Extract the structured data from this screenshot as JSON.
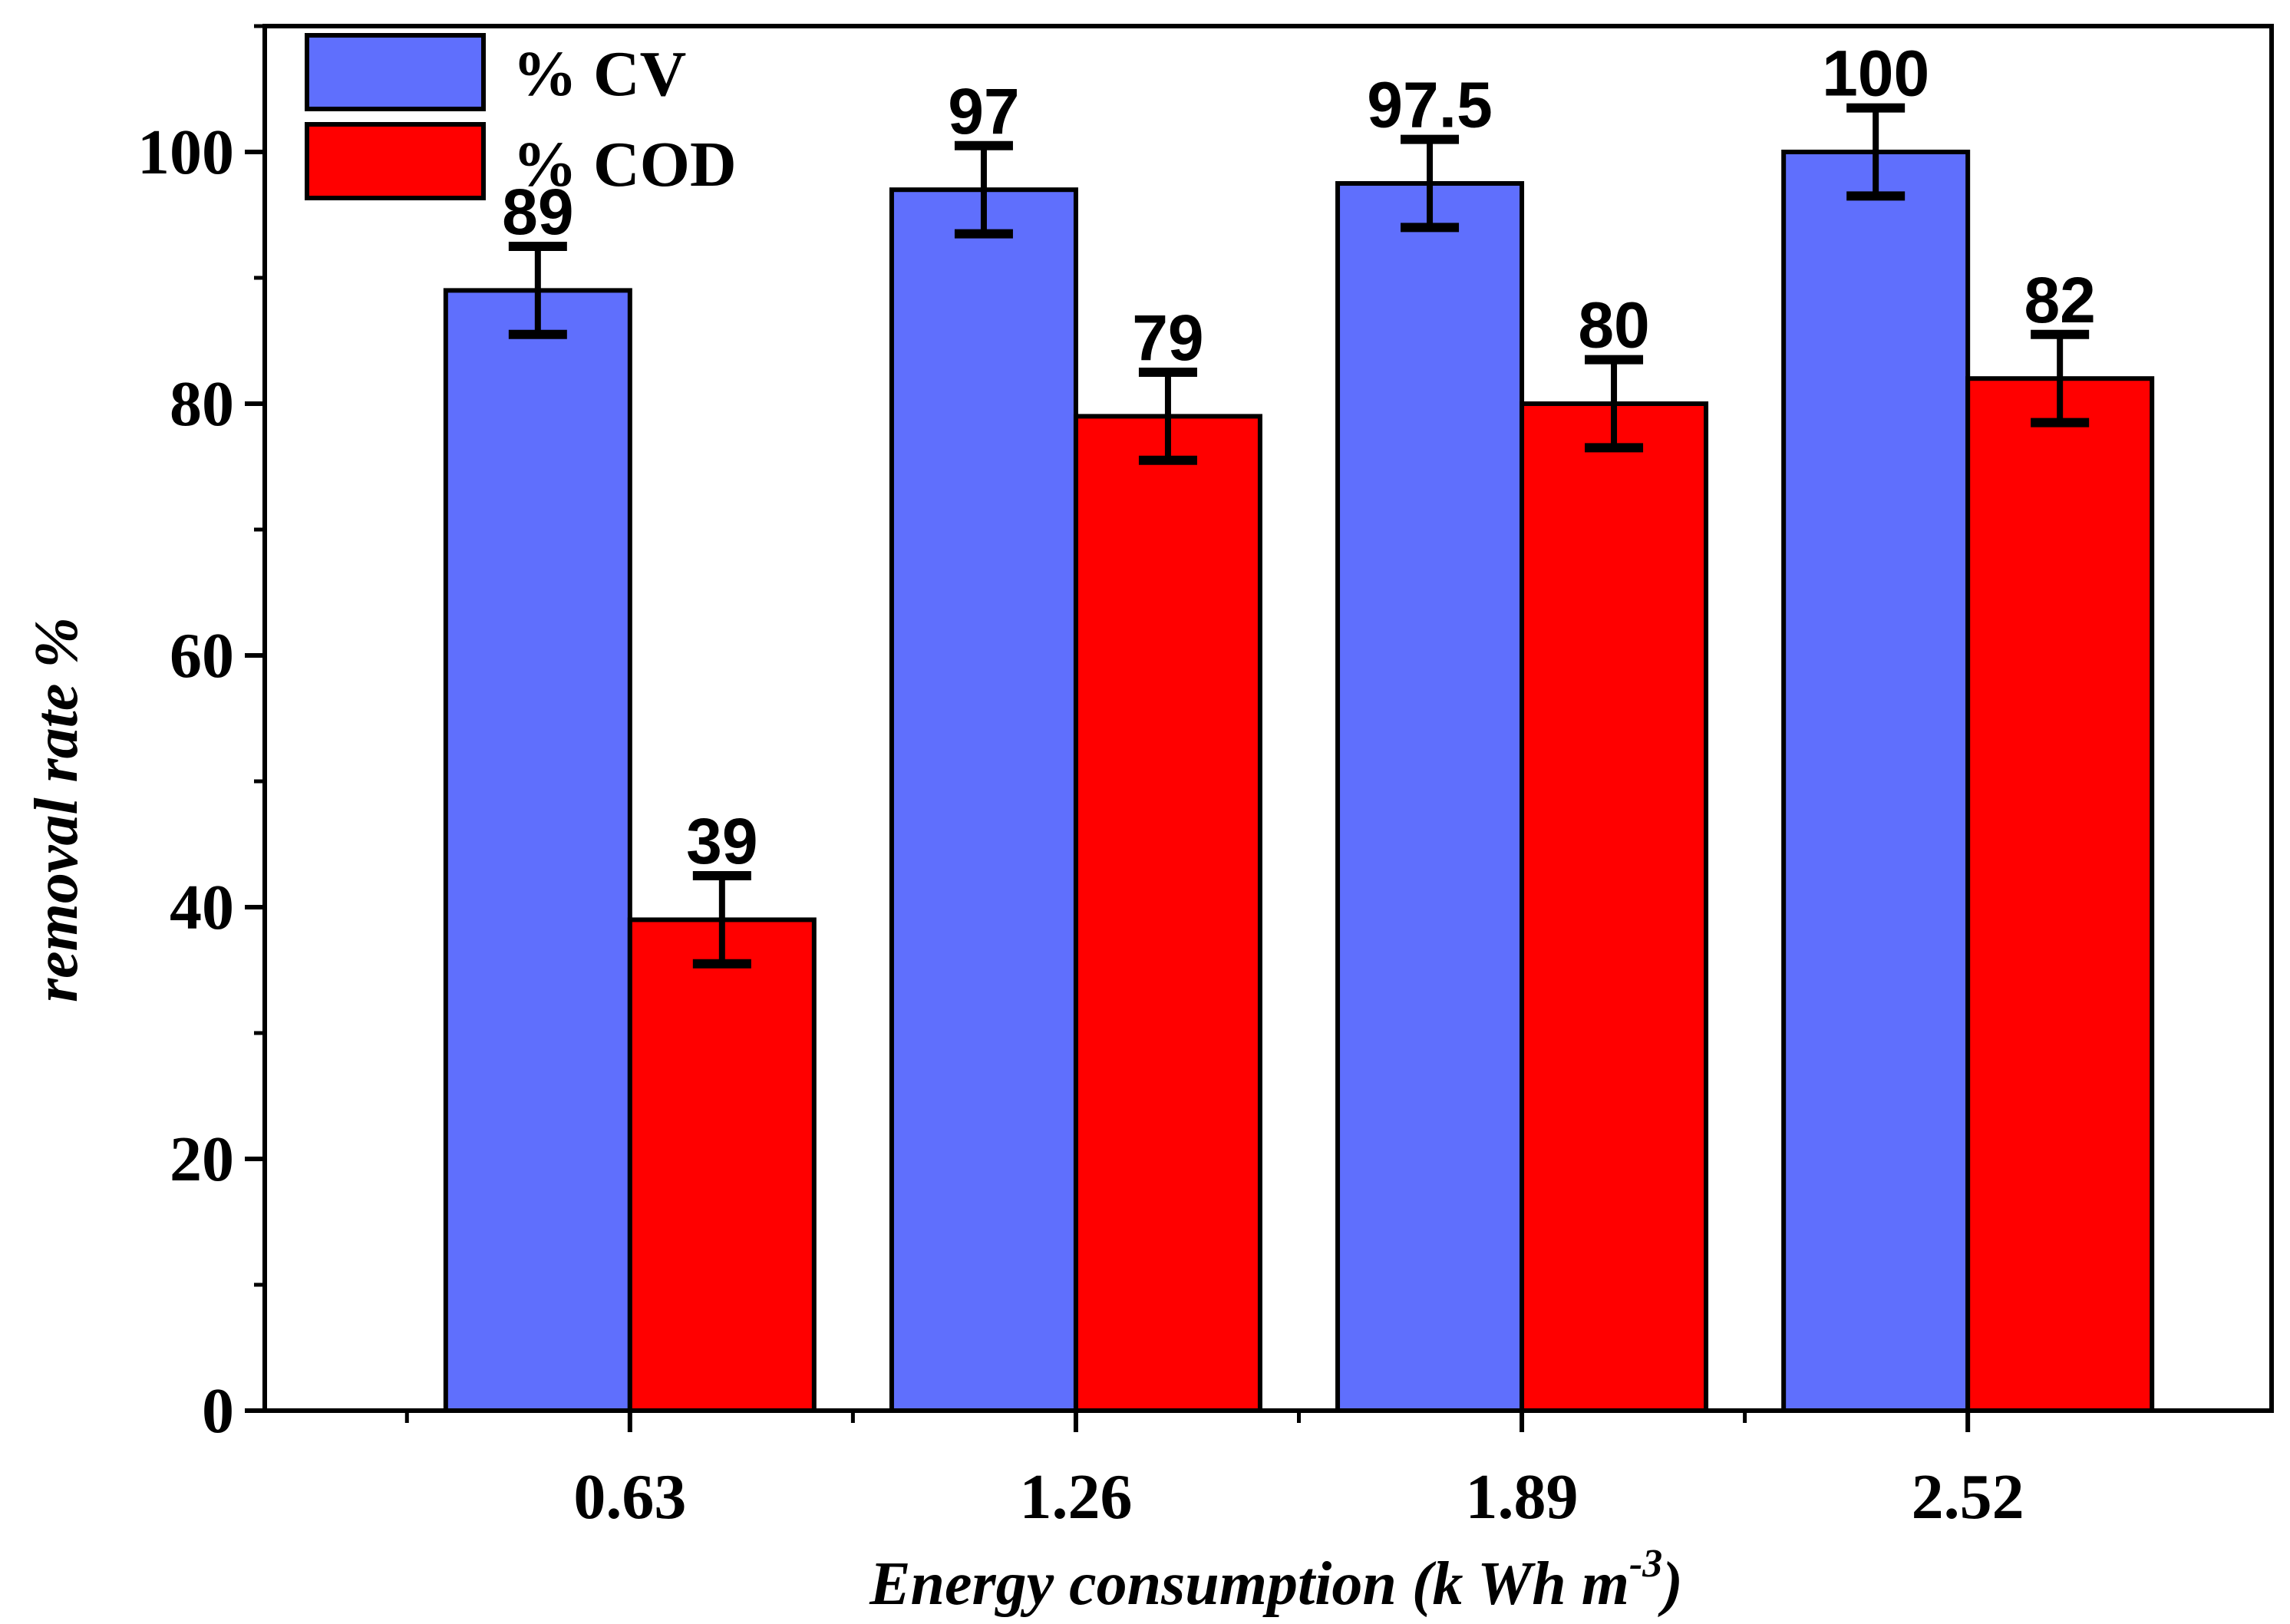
{
  "chart_data": {
    "type": "bar",
    "categories": [
      "0.63",
      "1.26",
      "1.89",
      "2.52"
    ],
    "series": [
      {
        "name": "% CV",
        "color": "#5f6ffd",
        "values": [
          89,
          97,
          97.5,
          100
        ],
        "errors": [
          3.5,
          3.5,
          3.5,
          3.5
        ]
      },
      {
        "name": "% COD",
        "color": "#ff0000",
        "values": [
          39,
          79,
          80,
          82
        ],
        "errors": [
          3.5,
          3.5,
          3.5,
          3.5
        ]
      }
    ],
    "data_labels": [
      [
        "89",
        "97",
        "97.5",
        "100"
      ],
      [
        "39",
        "79",
        "80",
        "82"
      ]
    ],
    "title": "",
    "xlabel": {
      "main": "Energy consumption (k Wh m",
      "sup": "-3",
      "close": ")"
    },
    "ylabel": "removal rate %",
    "ylim": [
      0,
      110
    ],
    "yticks": [
      0,
      20,
      40,
      60,
      80,
      100
    ],
    "grid": false,
    "legend_position": "top-left"
  }
}
